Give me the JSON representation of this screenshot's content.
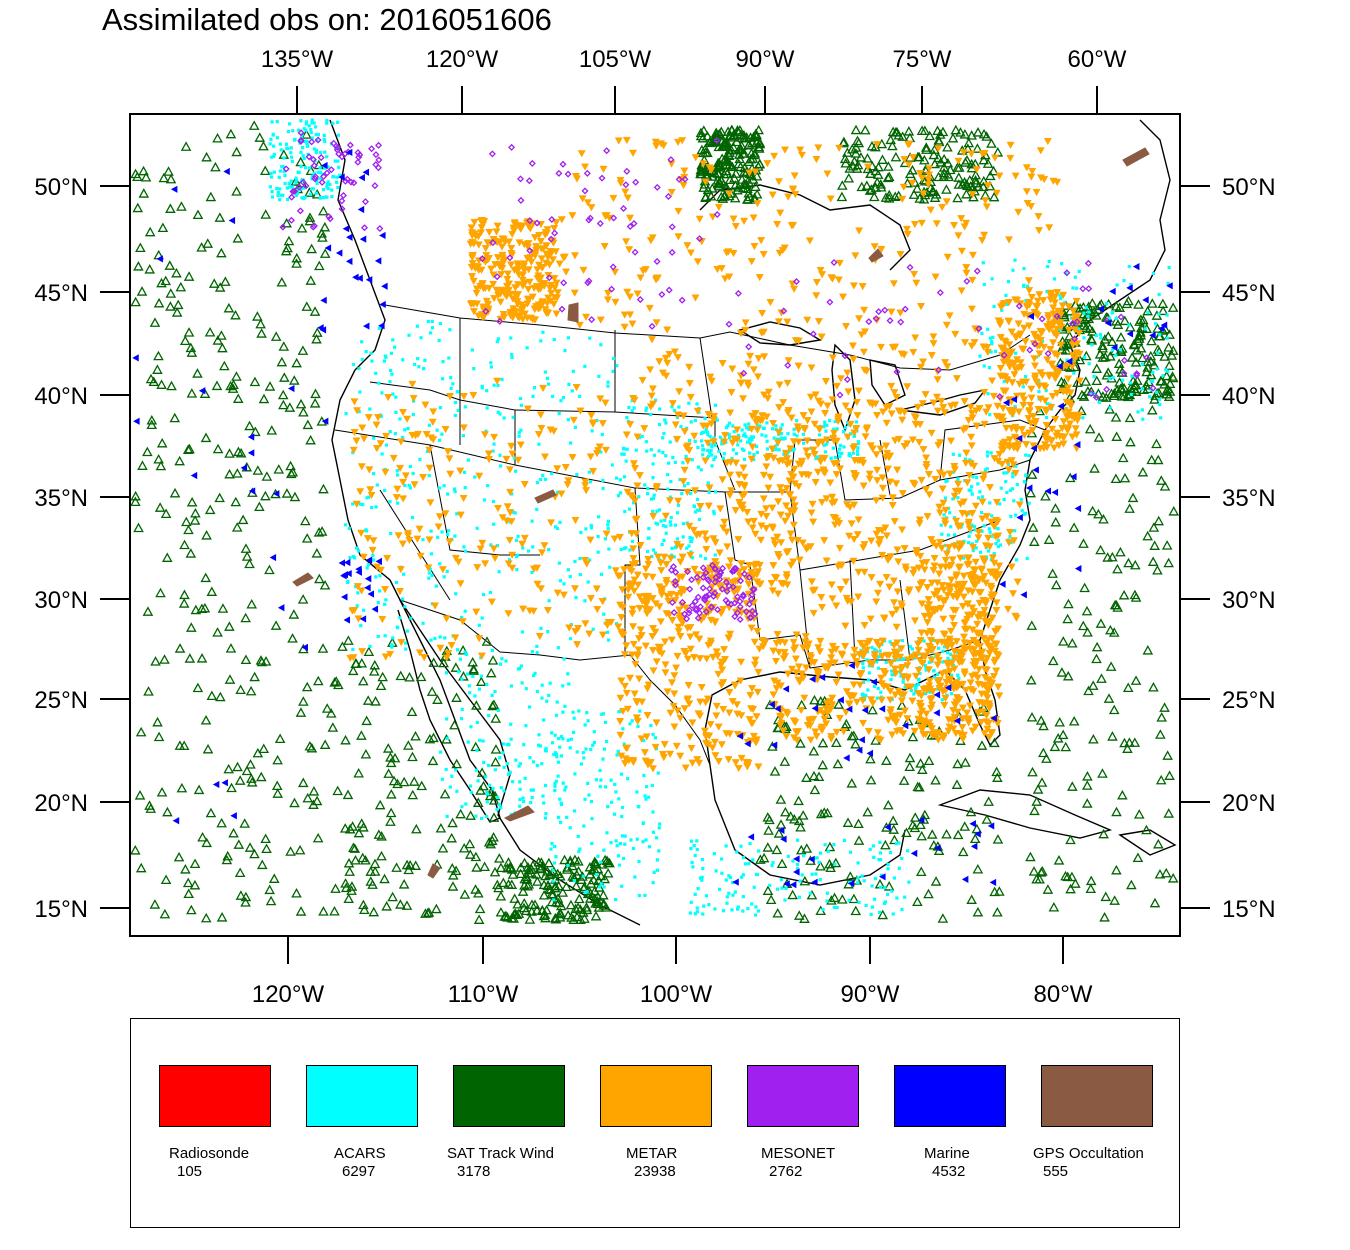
{
  "title": "Assimilated obs on: 2016051606",
  "axes": {
    "top_ticks": [
      "135°W",
      "120°W",
      "105°W",
      "90°W",
      "75°W",
      "60°W"
    ],
    "bottom_ticks": [
      "120°W",
      "110°W",
      "100°W",
      "90°W",
      "80°W"
    ],
    "left_ticks": [
      "50°N",
      "45°N",
      "40°N",
      "35°N",
      "30°N",
      "25°N",
      "20°N",
      "15°N"
    ],
    "right_ticks": [
      "50°N",
      "45°N",
      "40°N",
      "35°N",
      "30°N",
      "25°N",
      "20°N",
      "15°N"
    ]
  },
  "legend": [
    {
      "name": "Radiosonde",
      "count": "105",
      "color": "#ff0000"
    },
    {
      "name": "ACARS",
      "count": "6297",
      "color": "#00ffff"
    },
    {
      "name": "SAT Track Wind",
      "count": "3178",
      "color": "#006400"
    },
    {
      "name": "METAR",
      "count": "23938",
      "color": "#ffa500"
    },
    {
      "name": "MESONET",
      "count": "2762",
      "color": "#a020f0"
    },
    {
      "name": "Marine",
      "count": "4532",
      "color": "#0000ff"
    },
    {
      "name": "GPS Occultation",
      "count": "555",
      "color": "#8b5a42"
    }
  ],
  "colors": {
    "acars": "#00ffff",
    "sat_track_wind": "#006400",
    "metar": "#ffa500",
    "mesonet": "#a020f0",
    "marine": "#0000ff",
    "gps": "#8b5a42"
  }
}
